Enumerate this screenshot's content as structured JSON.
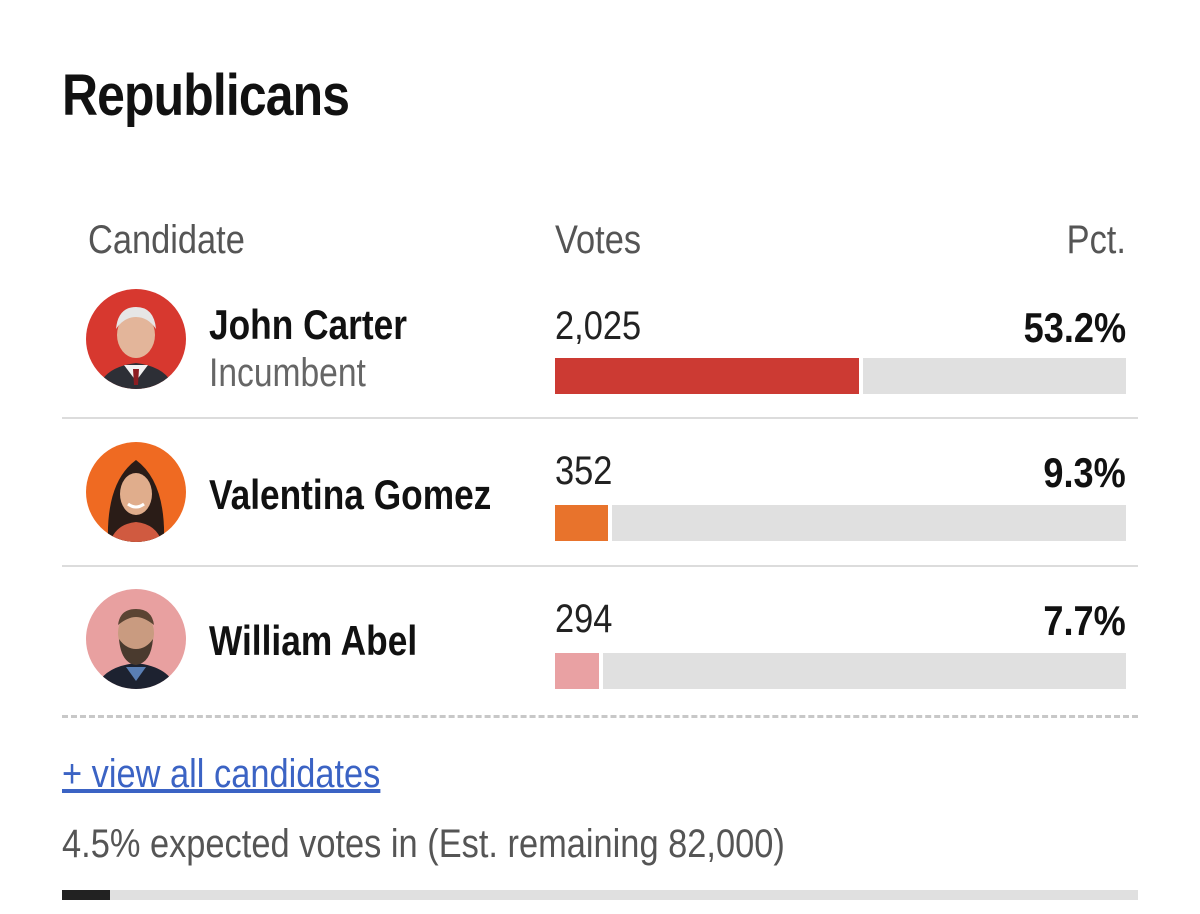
{
  "section": {
    "title": "Republicans"
  },
  "table_headers": {
    "candidate": "Candidate",
    "votes": "Votes",
    "pct": "Pct."
  },
  "candidates": [
    {
      "name": "John Carter",
      "status": "Incumbent",
      "votes": "2,025",
      "pct_label": "53.2%",
      "pct": 53.2,
      "color": "#cc3a33",
      "avatar_bg": "#d7382f"
    },
    {
      "name": "Valentina Gomez",
      "status": "",
      "votes": "352",
      "pct_label": "9.3%",
      "pct": 9.3,
      "color": "#e8732c",
      "avatar_bg": "#ef6a22"
    },
    {
      "name": "William Abel",
      "status": "",
      "votes": "294",
      "pct_label": "7.7%",
      "pct": 7.7,
      "color": "#e9a1a3",
      "avatar_bg": "#e8a0a0"
    }
  ],
  "footer": {
    "view_all_label": "+ view all candidates",
    "expected_text": "4.5% expected votes in (Est. remaining 82,000)",
    "expected_pct": 4.5
  }
}
